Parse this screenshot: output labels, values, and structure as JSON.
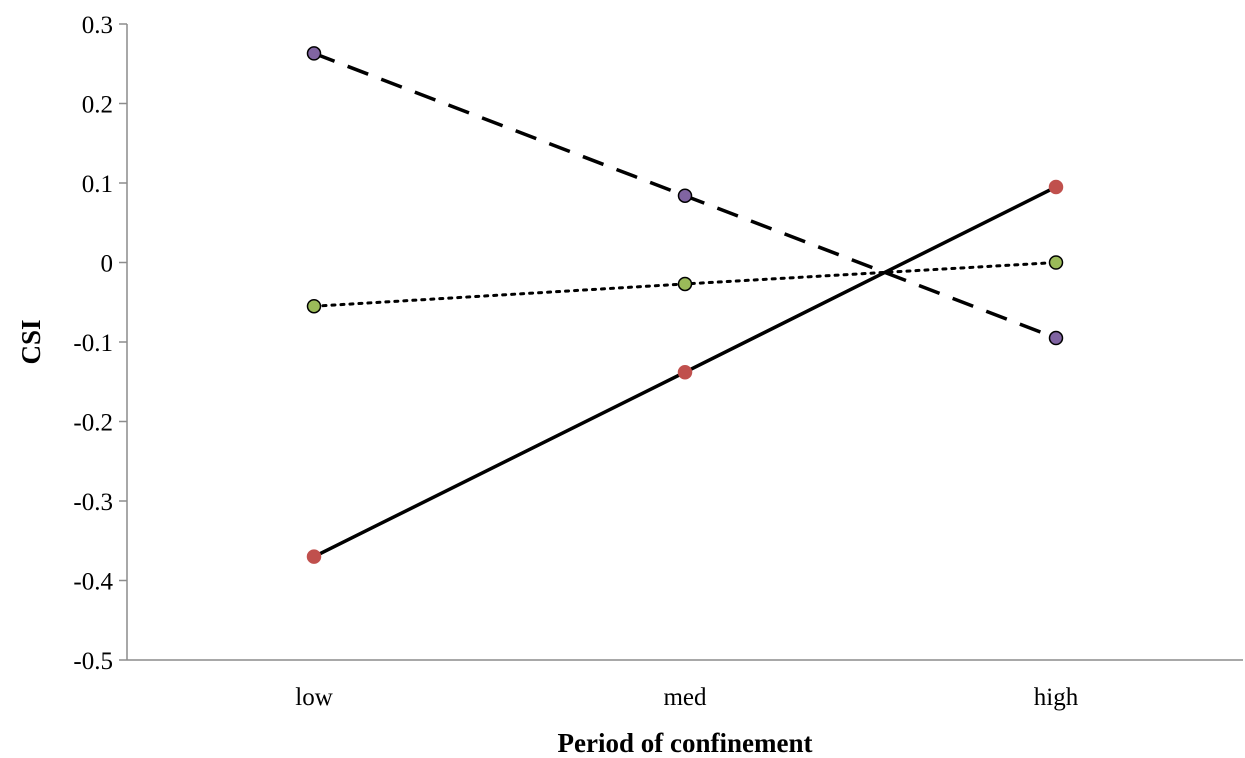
{
  "chart_data": {
    "type": "line",
    "categories": [
      "low",
      "med",
      "high"
    ],
    "xlabel": "Period of confinement",
    "ylabel": "CSI",
    "ylim": [
      -0.5,
      0.3
    ],
    "yticks": [
      "0.3",
      "0.2",
      "0.1",
      "0",
      "-0.1",
      "-0.2",
      "-0.3",
      "-0.4",
      "-0.5"
    ],
    "grid": false,
    "legend": "none",
    "series": [
      {
        "values": [
          0.263,
          0.084,
          -0.095
        ],
        "line_style": "dashed",
        "line_color": "#000000",
        "marker_color": "#8064a2",
        "marker_edge": "#000000"
      },
      {
        "values": [
          -0.055,
          -0.027,
          0.0
        ],
        "line_style": "dotted",
        "line_color": "#000000",
        "marker_color": "#9bbb59",
        "marker_edge": "#000000"
      },
      {
        "values": [
          -0.37,
          -0.138,
          0.095
        ],
        "line_style": "solid",
        "line_color": "#000000",
        "marker_color": "#c0504d",
        "marker_edge": "#c0504d"
      }
    ]
  }
}
